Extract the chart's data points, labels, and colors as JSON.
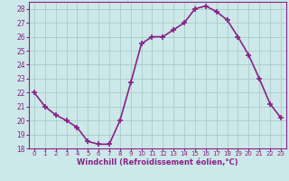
{
  "x": [
    0,
    1,
    2,
    3,
    4,
    5,
    6,
    7,
    8,
    9,
    10,
    11,
    12,
    13,
    14,
    15,
    16,
    17,
    18,
    19,
    20,
    21,
    22,
    23
  ],
  "y": [
    22.0,
    21.0,
    20.4,
    20.0,
    19.5,
    18.5,
    18.3,
    18.3,
    20.0,
    22.7,
    25.5,
    26.0,
    26.0,
    26.5,
    27.0,
    28.0,
    28.2,
    27.8,
    27.2,
    26.0,
    24.7,
    23.0,
    21.2,
    20.2
  ],
  "line_color": "#882288",
  "marker": "P",
  "marker_size": 2.5,
  "bg_color": "#cce8e8",
  "grid_color": "#aacccc",
  "xlabel": "Windchill (Refroidissement éolien,°C)",
  "ylim": [
    18,
    28.5
  ],
  "yticks": [
    18,
    19,
    20,
    21,
    22,
    23,
    24,
    25,
    26,
    27,
    28
  ],
  "xlim": [
    -0.5,
    23.5
  ],
  "xtick_labels": [
    "0",
    "1",
    "2",
    "3",
    "4",
    "5",
    "6",
    "7",
    "8",
    "9",
    "10",
    "11",
    "12",
    "13",
    "14",
    "15",
    "16",
    "17",
    "18",
    "19",
    "20",
    "21",
    "22",
    "23"
  ],
  "tick_color": "#882288",
  "label_color": "#882288",
  "spine_color": "#882288",
  "line_width": 1.2,
  "ytick_fontsize": 5.5,
  "xtick_fontsize": 5.0,
  "xlabel_fontsize": 6.0
}
